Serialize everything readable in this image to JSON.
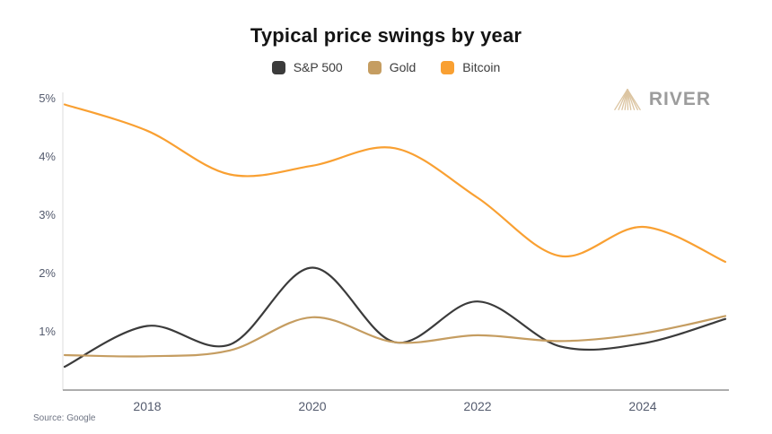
{
  "chart_data": {
    "type": "line",
    "title": "Typical price swings by year",
    "x": [
      2017,
      2018,
      2019,
      2020,
      2021,
      2022,
      2023,
      2024,
      2025
    ],
    "series": [
      {
        "name": "S&P 500",
        "color": "#3b3b3b",
        "values": [
          0.4,
          1.1,
          0.78,
          2.1,
          0.82,
          1.52,
          0.75,
          0.8,
          1.22
        ]
      },
      {
        "name": "Gold",
        "color": "#c59d61",
        "values": [
          0.6,
          0.58,
          0.68,
          1.25,
          0.82,
          0.94,
          0.84,
          0.97,
          1.27
        ]
      },
      {
        "name": "Bitcoin",
        "color": "#f9a032",
        "values": [
          4.9,
          4.45,
          3.7,
          3.85,
          4.15,
          3.3,
          2.3,
          2.8,
          2.2
        ]
      }
    ],
    "x_ticks": [
      {
        "label": "2018",
        "value": 2018
      },
      {
        "label": "2020",
        "value": 2020
      },
      {
        "label": "2022",
        "value": 2022
      },
      {
        "label": "2024",
        "value": 2024
      }
    ],
    "y_ticks": [
      {
        "label": "1%",
        "value": 1
      },
      {
        "label": "2%",
        "value": 2
      },
      {
        "label": "3%",
        "value": 3
      },
      {
        "label": "4%",
        "value": 4
      },
      {
        "label": "5%",
        "value": 5
      }
    ],
    "xlim": [
      2017,
      2025.1
    ],
    "ylim": [
      0,
      5.15
    ],
    "unit": "%",
    "grid": false,
    "smooth": true,
    "legend_position": "top-center",
    "axis_color": "#adadad",
    "axis_left_color": "#e8e8e8",
    "tick_label_color": "#545b6e"
  },
  "logo": {
    "text": "RIVER",
    "icon": "mountain-fan-icon",
    "icon_color": "#dcc5a2",
    "text_color": "#9c9c9c"
  },
  "source": {
    "text": "Source: Google"
  }
}
